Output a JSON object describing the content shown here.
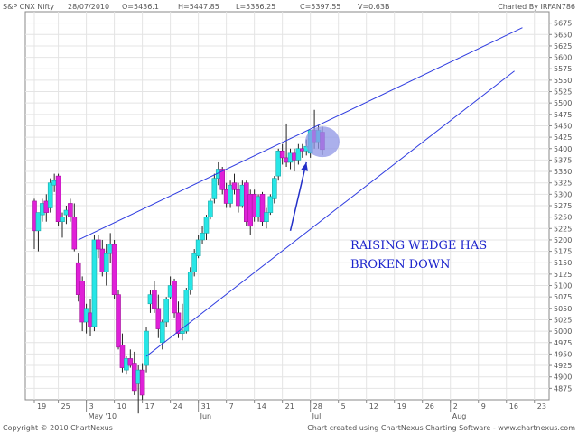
{
  "header": {
    "symbol": "S&P CNX Nifty",
    "date": "28/07/2010",
    "open": "O=5436.1",
    "high": "H=5447.85",
    "low": "L=5386.25",
    "close": "C=5397.55",
    "volume": "V=0.63B",
    "charted_by": "Charted By IRFAN786"
  },
  "footer": {
    "left": "Copyright © 2010 ChartNexus",
    "right": "Chart created using ChartNexus Charting Software - www.chartnexus.com"
  },
  "annotation": {
    "line1": "RAISING WEDGE HAS",
    "line2": "BROKEN DOWN"
  },
  "colors": {
    "up": "#27e6e6",
    "down": "#e020d8",
    "wick": "#222222",
    "trendline": "#2f3ce0",
    "highlight": "#8f96e6",
    "arrow": "#2330c8"
  },
  "chart_data": {
    "type": "candlestick",
    "ylim": [
      4850,
      5700
    ],
    "yticks": [
      4875,
      4900,
      4925,
      4950,
      4975,
      5000,
      5025,
      5050,
      5075,
      5100,
      5125,
      5150,
      5175,
      5200,
      5225,
      5250,
      5275,
      5300,
      5325,
      5350,
      5375,
      5400,
      5425,
      5450,
      5475,
      5500,
      5525,
      5550,
      5575,
      5600,
      5625,
      5650,
      5675
    ],
    "xtick_labels": [
      {
        "day": 0,
        "label": "19"
      },
      {
        "day": 6,
        "label": "25"
      },
      {
        "day": 13,
        "label": "3"
      },
      {
        "day": 20,
        "label": "10"
      },
      {
        "day": 27,
        "label": "17"
      },
      {
        "day": 34,
        "label": "24"
      },
      {
        "day": 41,
        "label": "31"
      },
      {
        "day": 48,
        "label": "7"
      },
      {
        "day": 55,
        "label": "14"
      },
      {
        "day": 62,
        "label": "21"
      },
      {
        "day": 69,
        "label": "28"
      },
      {
        "day": 76,
        "label": "5"
      },
      {
        "day": 83,
        "label": "12"
      },
      {
        "day": 90,
        "label": "19"
      },
      {
        "day": 97,
        "label": "26"
      },
      {
        "day": 104,
        "label": "2"
      },
      {
        "day": 111,
        "label": "9"
      },
      {
        "day": 118,
        "label": "16"
      },
      {
        "day": 125,
        "label": "23"
      }
    ],
    "month_labels": [
      {
        "day": 13,
        "label": "May '10"
      },
      {
        "day": 41,
        "label": "Jun"
      },
      {
        "day": 69,
        "label": "Jul"
      },
      {
        "day": 104,
        "label": "Aug"
      }
    ],
    "candles": [
      {
        "day": 0,
        "o": 5285,
        "h": 5290,
        "l": 5180,
        "c": 5220
      },
      {
        "day": 1,
        "o": 5220,
        "h": 5260,
        "l": 5175,
        "c": 5260
      },
      {
        "day": 2,
        "o": 5255,
        "h": 5290,
        "l": 5240,
        "c": 5280
      },
      {
        "day": 3,
        "o": 5285,
        "h": 5300,
        "l": 5240,
        "c": 5260
      },
      {
        "day": 4,
        "o": 5270,
        "h": 5335,
        "l": 5260,
        "c": 5325
      },
      {
        "day": 5,
        "o": 5320,
        "h": 5345,
        "l": 5305,
        "c": 5330
      },
      {
        "day": 6,
        "o": 5340,
        "h": 5345,
        "l": 5230,
        "c": 5240
      },
      {
        "day": 7,
        "o": 5240,
        "h": 5260,
        "l": 5205,
        "c": 5250
      },
      {
        "day": 8,
        "o": 5255,
        "h": 5275,
        "l": 5235,
        "c": 5265
      },
      {
        "day": 9,
        "o": 5280,
        "h": 5290,
        "l": 5240,
        "c": 5250
      },
      {
        "day": 10,
        "o": 5250,
        "h": 5280,
        "l": 5175,
        "c": 5180
      },
      {
        "day": 11,
        "o": 5150,
        "h": 5170,
        "l": 5065,
        "c": 5080
      },
      {
        "day": 12,
        "o": 5110,
        "h": 5120,
        "l": 5000,
        "c": 5020
      },
      {
        "day": 13,
        "o": 5020,
        "h": 5060,
        "l": 4995,
        "c": 5050
      },
      {
        "day": 14,
        "o": 5040,
        "h": 5070,
        "l": 4990,
        "c": 5010
      },
      {
        "day": 15,
        "o": 5010,
        "h": 5210,
        "l": 5000,
        "c": 5200
      },
      {
        "day": 16,
        "o": 5200,
        "h": 5210,
        "l": 5160,
        "c": 5180
      },
      {
        "day": 17,
        "o": 5180,
        "h": 5200,
        "l": 5120,
        "c": 5130
      },
      {
        "day": 18,
        "o": 5130,
        "h": 5190,
        "l": 5100,
        "c": 5170
      },
      {
        "day": 19,
        "o": 5170,
        "h": 5215,
        "l": 5150,
        "c": 5190
      },
      {
        "day": 20,
        "o": 5190,
        "h": 5200,
        "l": 5070,
        "c": 5080
      },
      {
        "day": 21,
        "o": 5080,
        "h": 5090,
        "l": 4960,
        "c": 4965
      },
      {
        "day": 22,
        "o": 4970,
        "h": 4995,
        "l": 4910,
        "c": 4920
      },
      {
        "day": 23,
        "o": 4915,
        "h": 4945,
        "l": 4905,
        "c": 4940
      },
      {
        "day": 24,
        "o": 4940,
        "h": 4960,
        "l": 4920,
        "c": 4925
      },
      {
        "day": 25,
        "o": 4930,
        "h": 4955,
        "l": 4860,
        "c": 4870
      },
      {
        "day": 26,
        "o": 4885,
        "h": 4925,
        "l": 4820,
        "c": 4915
      },
      {
        "day": 27,
        "o": 4915,
        "h": 4930,
        "l": 4850,
        "c": 4860
      },
      {
        "day": 28,
        "o": 4925,
        "h": 5010,
        "l": 4910,
        "c": 5000
      },
      {
        "day": 29,
        "o": 5060,
        "h": 5090,
        "l": 5040,
        "c": 5080
      },
      {
        "day": 30,
        "o": 5090,
        "h": 5110,
        "l": 5040,
        "c": 5050
      },
      {
        "day": 31,
        "o": 5050,
        "h": 5080,
        "l": 4985,
        "c": 5005
      },
      {
        "day": 32,
        "o": 4975,
        "h": 5025,
        "l": 4960,
        "c": 5020
      },
      {
        "day": 33,
        "o": 5020,
        "h": 5075,
        "l": 5010,
        "c": 5070
      },
      {
        "day": 34,
        "o": 5075,
        "h": 5120,
        "l": 5070,
        "c": 5100
      },
      {
        "day": 35,
        "o": 5110,
        "h": 5115,
        "l": 5030,
        "c": 5040
      },
      {
        "day": 36,
        "o": 5040,
        "h": 5065,
        "l": 4985,
        "c": 4995
      },
      {
        "day": 37,
        "o": 4995,
        "h": 5060,
        "l": 4980,
        "c": 5000
      },
      {
        "day": 38,
        "o": 5000,
        "h": 5095,
        "l": 4995,
        "c": 5090
      },
      {
        "day": 39,
        "o": 5090,
        "h": 5140,
        "l": 5080,
        "c": 5130
      },
      {
        "day": 40,
        "o": 5130,
        "h": 5180,
        "l": 5120,
        "c": 5170
      },
      {
        "day": 41,
        "o": 5165,
        "h": 5210,
        "l": 5160,
        "c": 5200
      },
      {
        "day": 42,
        "o": 5200,
        "h": 5230,
        "l": 5190,
        "c": 5215
      },
      {
        "day": 43,
        "o": 5215,
        "h": 5255,
        "l": 5200,
        "c": 5250
      },
      {
        "day": 44,
        "o": 5250,
        "h": 5290,
        "l": 5245,
        "c": 5285
      },
      {
        "day": 45,
        "o": 5290,
        "h": 5345,
        "l": 5280,
        "c": 5335
      },
      {
        "day": 46,
        "o": 5335,
        "h": 5370,
        "l": 5320,
        "c": 5355
      },
      {
        "day": 47,
        "o": 5355,
        "h": 5360,
        "l": 5300,
        "c": 5310
      },
      {
        "day": 48,
        "o": 5310,
        "h": 5325,
        "l": 5270,
        "c": 5280
      },
      {
        "day": 49,
        "o": 5280,
        "h": 5330,
        "l": 5270,
        "c": 5320
      },
      {
        "day": 50,
        "o": 5325,
        "h": 5345,
        "l": 5300,
        "c": 5310
      },
      {
        "day": 51,
        "o": 5310,
        "h": 5325,
        "l": 5260,
        "c": 5275
      },
      {
        "day": 52,
        "o": 5275,
        "h": 5330,
        "l": 5270,
        "c": 5320
      },
      {
        "day": 53,
        "o": 5325,
        "h": 5330,
        "l": 5230,
        "c": 5240
      },
      {
        "day": 54,
        "o": 5300,
        "h": 5310,
        "l": 5210,
        "c": 5230
      },
      {
        "day": 55,
        "o": 5300,
        "h": 5310,
        "l": 5240,
        "c": 5250
      },
      {
        "day": 56,
        "o": 5250,
        "h": 5300,
        "l": 5240,
        "c": 5295
      },
      {
        "day": 57,
        "o": 5300,
        "h": 5305,
        "l": 5230,
        "c": 5240
      },
      {
        "day": 58,
        "o": 5240,
        "h": 5270,
        "l": 5225,
        "c": 5260
      },
      {
        "day": 59,
        "o": 5260,
        "h": 5300,
        "l": 5255,
        "c": 5295
      },
      {
        "day": 60,
        "o": 5290,
        "h": 5340,
        "l": 5280,
        "c": 5335
      },
      {
        "day": 61,
        "o": 5340,
        "h": 5400,
        "l": 5330,
        "c": 5395
      },
      {
        "day": 62,
        "o": 5395,
        "h": 5410,
        "l": 5365,
        "c": 5380
      },
      {
        "day": 63,
        "o": 5380,
        "h": 5455,
        "l": 5360,
        "c": 5370
      },
      {
        "day": 64,
        "o": 5370,
        "h": 5400,
        "l": 5355,
        "c": 5390
      },
      {
        "day": 65,
        "o": 5390,
        "h": 5400,
        "l": 5350,
        "c": 5375
      },
      {
        "day": 66,
        "o": 5375,
        "h": 5410,
        "l": 5365,
        "c": 5400
      },
      {
        "day": 67,
        "o": 5400,
        "h": 5410,
        "l": 5380,
        "c": 5395
      },
      {
        "day": 68,
        "o": 5395,
        "h": 5420,
        "l": 5385,
        "c": 5405
      },
      {
        "day": 69,
        "o": 5390,
        "h": 5440,
        "l": 5380,
        "c": 5440
      },
      {
        "day": 70,
        "o": 5440,
        "h": 5485,
        "l": 5400,
        "c": 5415
      },
      {
        "day": 71,
        "o": 5415,
        "h": 5450,
        "l": 5400,
        "c": 5440
      },
      {
        "day": 72,
        "o": 5436,
        "h": 5448,
        "l": 5386,
        "c": 5398
      }
    ],
    "trendlines": [
      {
        "name": "upper",
        "from": {
          "day": 11,
          "value": 5200
        },
        "to": {
          "day": 122,
          "value": 5665
        }
      },
      {
        "name": "lower",
        "from": {
          "day": 28,
          "value": 4945
        },
        "to": {
          "day": 120,
          "value": 5570
        }
      }
    ],
    "highlight": {
      "day": 72,
      "value": 5415
    },
    "arrow": {
      "from": {
        "day": 64,
        "value": 5220
      },
      "to": {
        "day": 68,
        "value": 5370
      }
    }
  }
}
